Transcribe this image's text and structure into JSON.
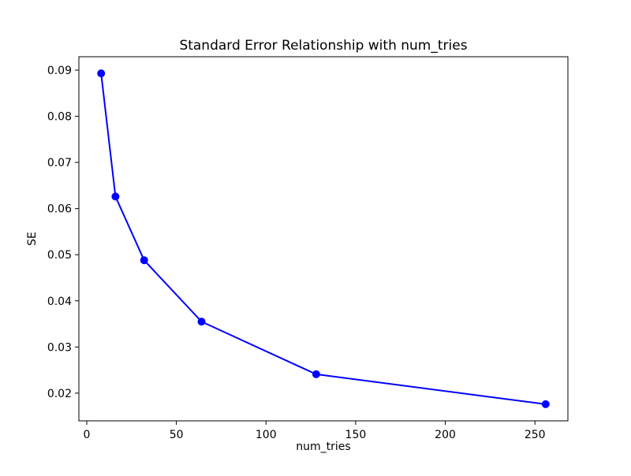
{
  "chart_data": {
    "type": "line",
    "title": "Standard Error Relationship with num_tries",
    "xlabel": "num_tries",
    "ylabel": "SE",
    "x": [
      8,
      16,
      32,
      64,
      128,
      256
    ],
    "y": [
      0.0893,
      0.0626,
      0.0488,
      0.0355,
      0.0241,
      0.0176
    ],
    "xlim": [
      -4.4,
      268.4
    ],
    "ylim": [
      0.014,
      0.0929
    ],
    "xticks": [
      0,
      50,
      100,
      150,
      200,
      250
    ],
    "yticks": [
      0.02,
      0.03,
      0.04,
      0.05,
      0.06,
      0.07,
      0.08,
      0.09
    ],
    "ytick_decimals": 2,
    "line_color": "#0000ff",
    "marker": "o",
    "marker_color": "#0000ff",
    "grid": false,
    "legend": null,
    "background_color": "#ffffff",
    "spine_color": "#000000"
  }
}
